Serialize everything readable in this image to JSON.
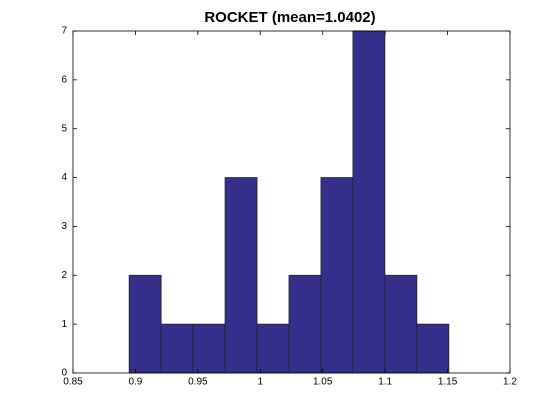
{
  "chart_data": {
    "type": "histogram",
    "title": "ROCKET (mean=1.0402)",
    "bins": [
      0.895,
      0.9206,
      0.9462,
      0.9718,
      0.9974,
      1.023,
      1.0486,
      1.0742,
      1.0998,
      1.1254,
      1.151
    ],
    "values": [
      2,
      1,
      1,
      4,
      1,
      2,
      4,
      7,
      2,
      1
    ],
    "color": "#35308c",
    "xlim": [
      0.85,
      1.2
    ],
    "xticks": [
      0.85,
      0.9,
      0.95,
      1,
      1.05,
      1.1,
      1.15,
      1.2
    ],
    "ylim": [
      0,
      7
    ],
    "yticks": [
      0,
      1,
      2,
      3,
      4,
      5,
      6,
      7
    ],
    "grid": false
  }
}
